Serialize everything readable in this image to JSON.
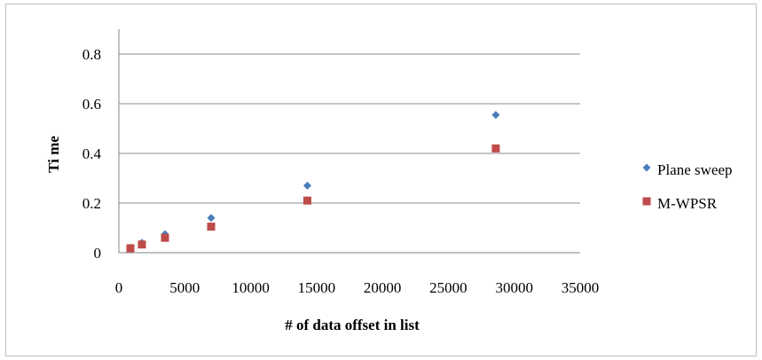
{
  "chart_data": {
    "type": "scatter",
    "title": "",
    "xlabel": "# of data offset in  list",
    "ylabel": "Ti me",
    "xlim": [
      0,
      35000
    ],
    "ylim": [
      0,
      0.9
    ],
    "x_ticks": [
      "0",
      "5000",
      "10000",
      "15000",
      "20000",
      "25000",
      "30000",
      "35000"
    ],
    "y_ticks": [
      "0",
      "0.2",
      "0.4",
      "0.6",
      "0.8"
    ],
    "grid": "horizontal",
    "legend_position": "right",
    "series": [
      {
        "name": "Plane sweep",
        "marker": "diamond",
        "color": "#4a7ebb",
        "points": [
          [
            875,
            0.02
          ],
          [
            1750,
            0.04
          ],
          [
            3500,
            0.075
          ],
          [
            7000,
            0.14
          ],
          [
            14300,
            0.27
          ],
          [
            28600,
            0.555
          ]
        ]
      },
      {
        "name": "M-WPSR",
        "marker": "square",
        "color": "#be4b48",
        "points": [
          [
            875,
            0.018
          ],
          [
            1750,
            0.033
          ],
          [
            3500,
            0.06
          ],
          [
            7000,
            0.105
          ],
          [
            14300,
            0.21
          ],
          [
            28600,
            0.42
          ]
        ]
      }
    ]
  }
}
